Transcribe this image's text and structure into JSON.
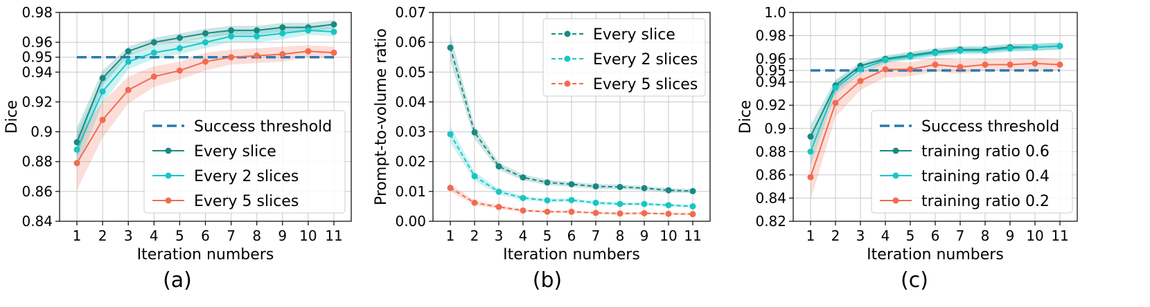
{
  "chart_data": [
    {
      "type": "line",
      "panel": "a",
      "caption": "(a)",
      "xlabel": "Iteration numbers",
      "ylabel": "Dice",
      "x": [
        1,
        2,
        3,
        4,
        5,
        6,
        7,
        8,
        9,
        10,
        11
      ],
      "xticks": [
        "1",
        "2",
        "3",
        "4",
        "5",
        "6",
        "7",
        "8",
        "9",
        "10",
        "11"
      ],
      "ylim": [
        0.84,
        0.98
      ],
      "yticks": [
        0.84,
        0.86,
        0.88,
        0.9,
        0.92,
        0.94,
        0.95,
        0.96,
        0.98
      ],
      "ytick_labels": [
        "0.84",
        "0.86",
        "0.88",
        "0.9",
        "0.92",
        "0.94",
        "0.95",
        "0.96",
        "0.98"
      ],
      "grid": true,
      "legend_position": "lower-right",
      "threshold": {
        "name": "Success threshold",
        "value": 0.95,
        "color": "#2a7ab0"
      },
      "series": [
        {
          "name": "Every slice",
          "color": "#178a82",
          "dashed": false,
          "values": [
            0.893,
            0.936,
            0.954,
            0.96,
            0.963,
            0.966,
            0.968,
            0.968,
            0.97,
            0.97,
            0.972
          ],
          "band": [
            0.01,
            0.005,
            0.003,
            0.003,
            0.003,
            0.003,
            0.003,
            0.003,
            0.003,
            0.003,
            0.003
          ]
        },
        {
          "name": "Every 2 slices",
          "color": "#17c6c6",
          "dashed": false,
          "values": [
            0.888,
            0.927,
            0.947,
            0.953,
            0.956,
            0.96,
            0.964,
            0.964,
            0.966,
            0.968,
            0.967
          ],
          "band": [
            0.012,
            0.008,
            0.005,
            0.004,
            0.004,
            0.004,
            0.004,
            0.004,
            0.004,
            0.003,
            0.003
          ]
        },
        {
          "name": "Every 5 slices",
          "color": "#f26b50",
          "dashed": false,
          "values": [
            0.879,
            0.908,
            0.928,
            0.937,
            0.941,
            0.947,
            0.95,
            0.951,
            0.952,
            0.954,
            0.953
          ],
          "band": [
            0.018,
            0.012,
            0.009,
            0.007,
            0.006,
            0.006,
            0.005,
            0.005,
            0.005,
            0.004,
            0.004
          ]
        }
      ]
    },
    {
      "type": "line",
      "panel": "b",
      "caption": "(b)",
      "xlabel": "Iteration numbers",
      "ylabel": "Prompt-to-volume ratio",
      "x": [
        1,
        2,
        3,
        4,
        5,
        6,
        7,
        8,
        9,
        10,
        11
      ],
      "xticks": [
        "1",
        "2",
        "3",
        "4",
        "5",
        "6",
        "7",
        "8",
        "9",
        "10",
        "11"
      ],
      "ylim": [
        0.0,
        0.07
      ],
      "yticks": [
        0.0,
        0.01,
        0.02,
        0.03,
        0.04,
        0.05,
        0.06,
        0.07
      ],
      "ytick_labels": [
        "0.00",
        "0.01",
        "0.02",
        "0.03",
        "0.04",
        "0.05",
        "0.06",
        "0.07"
      ],
      "grid": true,
      "legend_position": "top-right",
      "series": [
        {
          "name": "Every slice",
          "color": "#178a82",
          "dashed": true,
          "values": [
            0.0582,
            0.0298,
            0.0184,
            0.0147,
            0.013,
            0.0124,
            0.0117,
            0.0115,
            0.0111,
            0.0104,
            0.0101
          ],
          "band": [
            0.0045,
            0.0022,
            0.0012,
            0.001,
            0.0009,
            0.0008,
            0.0008,
            0.0008,
            0.0007,
            0.0007,
            0.0007
          ]
        },
        {
          "name": "Every 2 slices",
          "color": "#17c6c6",
          "dashed": true,
          "values": [
            0.0292,
            0.0151,
            0.0099,
            0.0078,
            0.007,
            0.0071,
            0.0062,
            0.0058,
            0.0058,
            0.0054,
            0.005
          ],
          "band": [
            0.0028,
            0.0015,
            0.0009,
            0.0007,
            0.0006,
            0.0006,
            0.0006,
            0.0005,
            0.0005,
            0.0005,
            0.0005
          ]
        },
        {
          "name": "Every 5 slices",
          "color": "#f26b50",
          "dashed": true,
          "values": [
            0.0112,
            0.0062,
            0.0048,
            0.0036,
            0.0032,
            0.0032,
            0.0028,
            0.0026,
            0.0027,
            0.0025,
            0.0024
          ],
          "band": [
            0.0012,
            0.0008,
            0.0006,
            0.0005,
            0.0004,
            0.0004,
            0.0004,
            0.0004,
            0.0004,
            0.0004,
            0.0004
          ]
        }
      ]
    },
    {
      "type": "line",
      "panel": "c",
      "caption": "(c)",
      "xlabel": "Iteration numbers",
      "ylabel": "Dice",
      "x": [
        1,
        2,
        3,
        4,
        5,
        6,
        7,
        8,
        9,
        10,
        11
      ],
      "xticks": [
        "1",
        "2",
        "3",
        "4",
        "5",
        "6",
        "7",
        "8",
        "9",
        "10",
        "11"
      ],
      "ylim": [
        0.82,
        1.0
      ],
      "yticks": [
        0.82,
        0.84,
        0.86,
        0.88,
        0.9,
        0.92,
        0.94,
        0.95,
        0.96,
        0.98,
        1.0
      ],
      "ytick_labels": [
        "0.82",
        "0.84",
        "0.86",
        "0.88",
        "0.9",
        "0.92",
        "0.94",
        "0.95",
        "0.96",
        "0.98",
        "1.0"
      ],
      "grid": true,
      "legend_position": "lower-right",
      "threshold": {
        "name": "Success threshold",
        "value": 0.95,
        "color": "#2a7ab0"
      },
      "series": [
        {
          "name": "training ratio 0.6",
          "color": "#178a82",
          "dashed": false,
          "values": [
            0.893,
            0.937,
            0.954,
            0.96,
            0.963,
            0.966,
            0.968,
            0.968,
            0.97,
            0.97,
            0.971
          ],
          "band": [
            0.01,
            0.005,
            0.003,
            0.003,
            0.003,
            0.003,
            0.003,
            0.003,
            0.003,
            0.003,
            0.003
          ]
        },
        {
          "name": "training ratio 0.4",
          "color": "#17c6c6",
          "dashed": false,
          "values": [
            0.88,
            0.935,
            0.951,
            0.959,
            0.962,
            0.965,
            0.967,
            0.967,
            0.969,
            0.97,
            0.971
          ],
          "band": [
            0.012,
            0.006,
            0.004,
            0.003,
            0.003,
            0.003,
            0.003,
            0.003,
            0.003,
            0.003,
            0.003
          ]
        },
        {
          "name": "training ratio 0.2",
          "color": "#f26b50",
          "dashed": false,
          "values": [
            0.858,
            0.922,
            0.941,
            0.951,
            0.951,
            0.955,
            0.953,
            0.955,
            0.955,
            0.956,
            0.955
          ],
          "band": [
            0.02,
            0.012,
            0.008,
            0.007,
            0.006,
            0.006,
            0.006,
            0.005,
            0.005,
            0.005,
            0.005
          ]
        }
      ]
    }
  ]
}
